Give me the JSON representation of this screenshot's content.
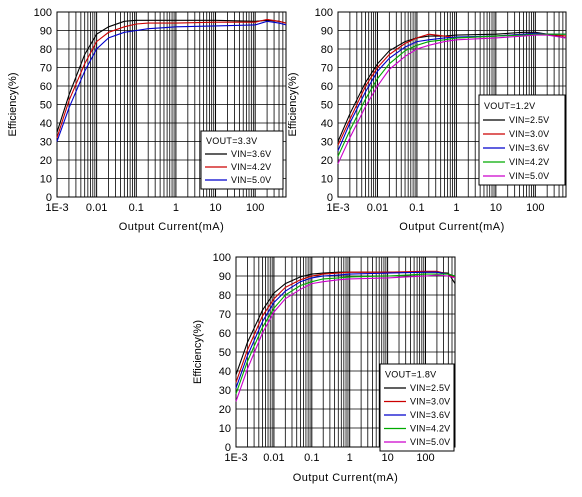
{
  "chart_data": [
    {
      "type": "line",
      "xscale": "log",
      "xlim": [
        0.001,
        600
      ],
      "ylim": [
        0,
        100
      ],
      "grid": true,
      "xlabel": "Output Current(mA)",
      "ylabel": "Efficiency(%)",
      "xticks": [
        {
          "value": 0.001,
          "label": "1E-3"
        },
        {
          "value": 0.01,
          "label": "0.01"
        },
        {
          "value": 0.1,
          "label": "0.1"
        },
        {
          "value": 1,
          "label": "1"
        },
        {
          "value": 10,
          "label": "10"
        },
        {
          "value": 100,
          "label": "100"
        }
      ],
      "yticks": [
        0,
        10,
        20,
        30,
        40,
        50,
        60,
        70,
        80,
        90,
        100
      ],
      "legend_title": "VOUT=3.3V",
      "legend_position": "bottom-right",
      "series": [
        {
          "name": "VIN=3.6V",
          "color": "#000000",
          "x": [
            0.001,
            0.002,
            0.005,
            0.01,
            0.02,
            0.05,
            0.1,
            0.2,
            0.5,
            1,
            10,
            100,
            200,
            400,
            600
          ],
          "y": [
            35,
            55,
            77,
            88,
            92,
            95,
            95.5,
            95.5,
            95.5,
            95.5,
            95.5,
            95,
            95.5,
            95,
            94
          ]
        },
        {
          "name": "VIN=4.2V",
          "color": "#cc0000",
          "x": [
            0.001,
            0.002,
            0.005,
            0.01,
            0.02,
            0.05,
            0.1,
            0.2,
            0.5,
            1,
            10,
            100,
            200,
            400,
            600
          ],
          "y": [
            32,
            52,
            72,
            84,
            89,
            92,
            93.5,
            94,
            94,
            94,
            94.5,
            94.5,
            96,
            95,
            94
          ]
        },
        {
          "name": "VIN=5.0V",
          "color": "#0000cc",
          "x": [
            0.001,
            0.002,
            0.005,
            0.01,
            0.02,
            0.05,
            0.1,
            0.2,
            0.5,
            1,
            10,
            100,
            200,
            400,
            600
          ],
          "y": [
            30,
            48,
            68,
            80,
            86,
            89,
            90,
            91,
            91.5,
            92,
            92.5,
            93,
            95,
            94,
            93
          ]
        }
      ]
    },
    {
      "type": "line",
      "xscale": "log",
      "xlim": [
        0.001,
        600
      ],
      "ylim": [
        0,
        100
      ],
      "grid": true,
      "xlabel": "Output Current(mA)",
      "ylabel": "Efficiency(%)",
      "xticks": [
        {
          "value": 0.001,
          "label": "1E-3"
        },
        {
          "value": 0.01,
          "label": "0.01"
        },
        {
          "value": 0.1,
          "label": "0.1"
        },
        {
          "value": 1,
          "label": "1"
        },
        {
          "value": 10,
          "label": "10"
        },
        {
          "value": 100,
          "label": "100"
        }
      ],
      "yticks": [
        0,
        10,
        20,
        30,
        40,
        50,
        60,
        70,
        80,
        90,
        100
      ],
      "legend_title": "VOUT=1.2V",
      "legend_position": "bottom-right",
      "series": [
        {
          "name": "VIN=2.5V",
          "color": "#000000",
          "x": [
            0.001,
            0.002,
            0.005,
            0.01,
            0.02,
            0.05,
            0.1,
            0.2,
            0.5,
            1,
            10,
            50,
            100,
            200,
            600
          ],
          "y": [
            30,
            45,
            62,
            72,
            79,
            84,
            86,
            87,
            87,
            87.5,
            88,
            89,
            89,
            88,
            86
          ]
        },
        {
          "name": "VIN=3.0V",
          "color": "#cc0000",
          "x": [
            0.001,
            0.002,
            0.005,
            0.01,
            0.02,
            0.05,
            0.1,
            0.2,
            0.5,
            1,
            10,
            50,
            100,
            200,
            600
          ],
          "y": [
            28,
            42,
            60,
            70,
            77,
            83,
            86,
            88,
            87,
            86,
            87,
            88,
            88.5,
            88,
            87
          ]
        },
        {
          "name": "VIN=3.6V",
          "color": "#0000cc",
          "x": [
            0.001,
            0.002,
            0.005,
            0.01,
            0.02,
            0.05,
            0.1,
            0.2,
            0.5,
            1,
            10,
            50,
            100,
            200,
            600
          ],
          "y": [
            25,
            40,
            57,
            68,
            75,
            81,
            84,
            85,
            86,
            86.5,
            87,
            88,
            88.5,
            88,
            88
          ]
        },
        {
          "name": "VIN=4.2V",
          "color": "#00aa00",
          "x": [
            0.001,
            0.002,
            0.005,
            0.01,
            0.02,
            0.05,
            0.1,
            0.2,
            0.5,
            1,
            10,
            50,
            100,
            200,
            600
          ],
          "y": [
            22,
            36,
            53,
            64,
            72,
            79,
            82,
            84,
            85,
            86,
            87,
            87.5,
            88,
            88,
            88
          ]
        },
        {
          "name": "VIN=5.0V",
          "color": "#cc00cc",
          "x": [
            0.001,
            0.002,
            0.005,
            0.01,
            0.02,
            0.05,
            0.1,
            0.2,
            0.5,
            1,
            10,
            50,
            100,
            200,
            600
          ],
          "y": [
            18,
            32,
            49,
            60,
            69,
            76,
            80,
            82,
            84,
            85,
            86,
            87,
            87.5,
            87.5,
            86
          ]
        }
      ]
    },
    {
      "type": "line",
      "xscale": "log",
      "xlim": [
        0.001,
        600
      ],
      "ylim": [
        0,
        100
      ],
      "grid": true,
      "xlabel": "Output Current(mA)",
      "ylabel": "Efficiency(%)",
      "xticks": [
        {
          "value": 0.001,
          "label": "1E-3"
        },
        {
          "value": 0.01,
          "label": "0.01"
        },
        {
          "value": 0.1,
          "label": "0.1"
        },
        {
          "value": 1,
          "label": "1"
        },
        {
          "value": 10,
          "label": "10"
        },
        {
          "value": 100,
          "label": "100"
        }
      ],
      "yticks": [
        0,
        10,
        20,
        30,
        40,
        50,
        60,
        70,
        80,
        90,
        100
      ],
      "legend_title": "VOUT=1.8V",
      "legend_position": "bottom-right",
      "series": [
        {
          "name": "VIN=2.5V",
          "color": "#000000",
          "x": [
            0.001,
            0.002,
            0.005,
            0.01,
            0.02,
            0.05,
            0.1,
            0.2,
            0.5,
            1,
            10,
            100,
            200,
            400,
            600
          ],
          "y": [
            38,
            55,
            72,
            81,
            86,
            89.5,
            91,
            91.5,
            92,
            92,
            92,
            92,
            92,
            91.5,
            86
          ]
        },
        {
          "name": "VIN=3.0V",
          "color": "#cc0000",
          "x": [
            0.001,
            0.002,
            0.005,
            0.01,
            0.02,
            0.05,
            0.1,
            0.2,
            0.5,
            1,
            10,
            100,
            200,
            400,
            600
          ],
          "y": [
            34,
            51,
            69,
            78,
            84,
            88,
            90,
            91,
            91.5,
            92,
            92,
            92.5,
            92.5,
            91,
            89
          ]
        },
        {
          "name": "VIN=3.6V",
          "color": "#0000cc",
          "x": [
            0.001,
            0.002,
            0.005,
            0.01,
            0.02,
            0.05,
            0.1,
            0.2,
            0.5,
            1,
            10,
            100,
            200,
            400,
            600
          ],
          "y": [
            31,
            48,
            66,
            76,
            82,
            87,
            89,
            90,
            90.5,
            91,
            91.5,
            92,
            92,
            91,
            90
          ]
        },
        {
          "name": "VIN=4.2V",
          "color": "#00aa00",
          "x": [
            0.001,
            0.002,
            0.005,
            0.01,
            0.02,
            0.05,
            0.1,
            0.2,
            0.5,
            1,
            10,
            100,
            200,
            400,
            600
          ],
          "y": [
            28,
            45,
            63,
            73,
            80,
            85,
            87,
            88.5,
            89,
            89.5,
            90,
            91,
            91,
            91,
            90
          ]
        },
        {
          "name": "VIN=5.0V",
          "color": "#cc00cc",
          "x": [
            0.001,
            0.002,
            0.005,
            0.01,
            0.02,
            0.05,
            0.1,
            0.2,
            0.5,
            1,
            10,
            100,
            200,
            400,
            600
          ],
          "y": [
            24,
            41,
            60,
            71,
            78,
            83,
            86,
            87,
            88,
            88.5,
            89,
            90,
            90.5,
            90,
            89
          ]
        }
      ]
    }
  ]
}
